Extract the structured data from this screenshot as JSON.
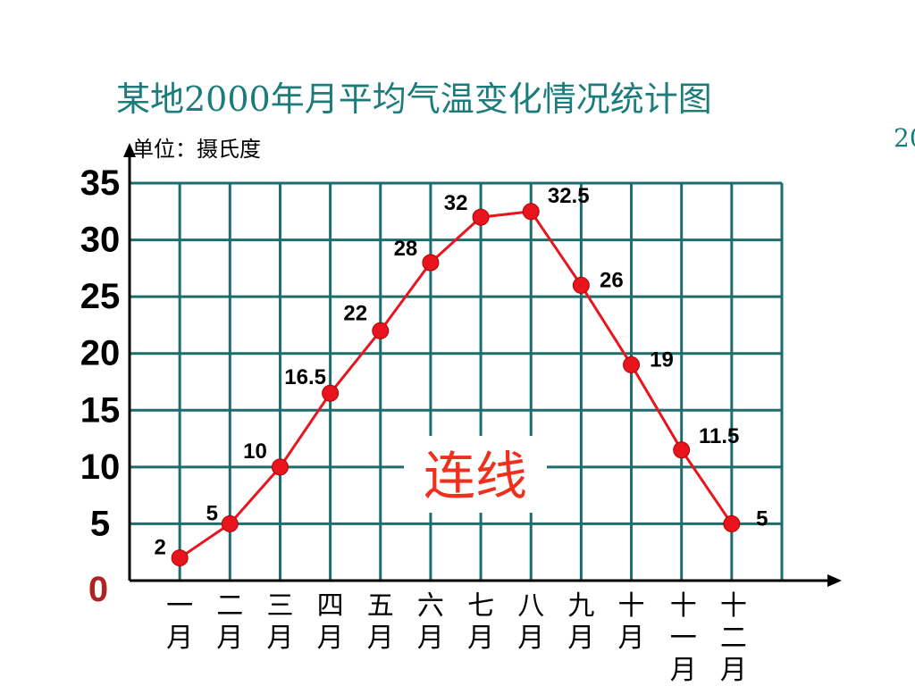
{
  "title": "某地2000年月平均气温变化情况统计图",
  "corner_text": "20",
  "unit_label": "单位：摄氏度",
  "center_label": "连线",
  "colors": {
    "title": "#1c7c7c",
    "grid": "#1c6e6e",
    "line": "#e8141e",
    "point": "#e8141e",
    "zero_label": "#b22222",
    "center_label": "#f0301c"
  },
  "chart_data": {
    "type": "line",
    "title": "某地2000年月平均气温变化情况统计图",
    "ylabel": "单位：摄氏度",
    "ylim": [
      0,
      35
    ],
    "y_ticks": [
      "0",
      "5",
      "10",
      "15",
      "20",
      "25",
      "30",
      "35"
    ],
    "categories": [
      "一月",
      "二月",
      "三月",
      "四月",
      "五月",
      "六月",
      "七月",
      "八月",
      "九月",
      "十月",
      "十一月",
      "十二月"
    ],
    "values": [
      2,
      5,
      10,
      16.5,
      22,
      28,
      32,
      32.5,
      26,
      19,
      11.5,
      5
    ],
    "data_labels": [
      "2",
      "5",
      "10",
      "16.5",
      "22",
      "28",
      "32",
      "32.5",
      "26",
      "19",
      "11.5",
      "5"
    ],
    "grid": true
  }
}
